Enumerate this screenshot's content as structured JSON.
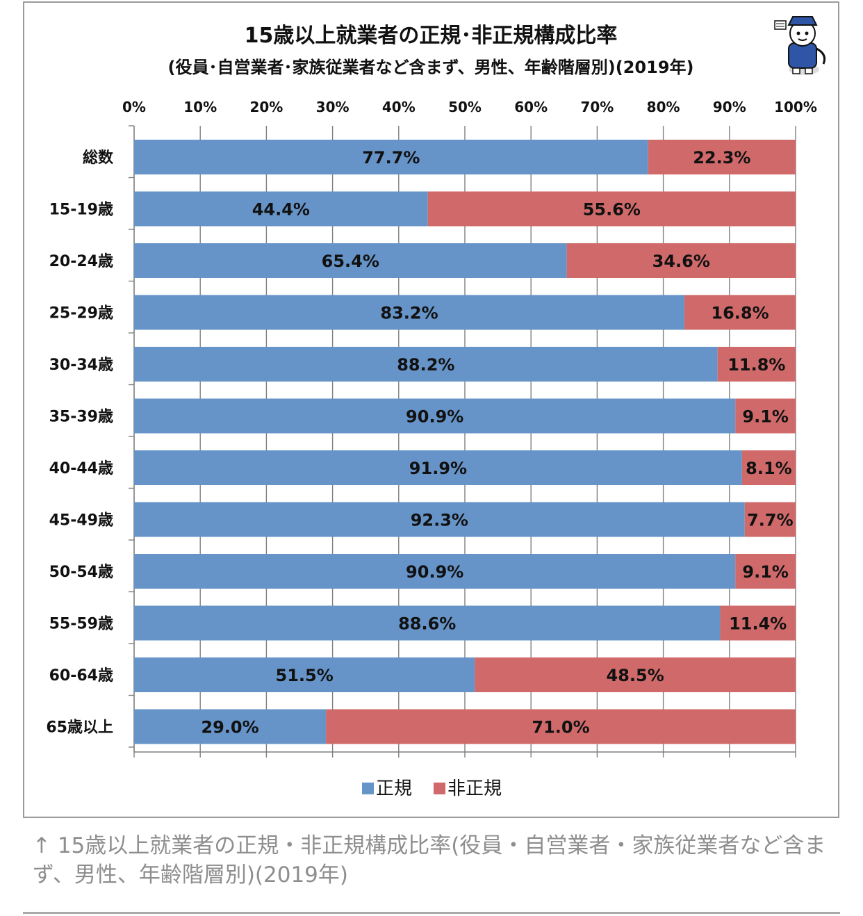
{
  "chart_data": {
    "type": "bar",
    "orientation": "horizontal",
    "stacked": true,
    "title": "15歳以上就業者の正規･非正規構成比率",
    "subtitle": "(役員･自営業者･家族従業者など含まず、男性、年齢階層別)(2019年)",
    "x_ticks": [
      "0%",
      "10%",
      "20%",
      "30%",
      "40%",
      "50%",
      "60%",
      "70%",
      "80%",
      "90%",
      "100%"
    ],
    "xlim": [
      0,
      100
    ],
    "axis_position": "top",
    "grid": true,
    "legend_position": "bottom",
    "categories": [
      "総数",
      "15-19歳",
      "20-24歳",
      "25-29歳",
      "30-34歳",
      "35-39歳",
      "40-44歳",
      "45-49歳",
      "50-54歳",
      "55-59歳",
      "60-64歳",
      "65歳以上"
    ],
    "series": [
      {
        "name": "正規",
        "color": "#6694c8",
        "values": [
          77.7,
          44.4,
          65.4,
          83.2,
          88.2,
          90.9,
          91.9,
          92.3,
          90.9,
          88.6,
          51.5,
          29.0
        ],
        "labels": [
          "77.7%",
          "44.4%",
          "65.4%",
          "83.2%",
          "88.2%",
          "90.9%",
          "91.9%",
          "92.3%",
          "90.9%",
          "88.6%",
          "51.5%",
          "29.0%"
        ]
      },
      {
        "name": "非正規",
        "color": "#d06a6a",
        "values": [
          22.3,
          55.6,
          34.6,
          16.8,
          11.8,
          9.1,
          8.1,
          7.7,
          9.1,
          11.4,
          48.5,
          71.0
        ],
        "labels": [
          "22.3%",
          "55.6%",
          "34.6%",
          "16.8%",
          "11.8%",
          "9.1%",
          "8.1%",
          "7.7%",
          "9.1%",
          "11.4%",
          "48.5%",
          "71.0%"
        ]
      }
    ]
  },
  "mascot": {
    "icon": "mascot-reporter-cat-icon"
  },
  "caption": "↑ 15歳以上就業者の正規・非正規構成比率(役員・自営業者・家族従業者など含まず、男性、年齢階層別)(2019年)"
}
